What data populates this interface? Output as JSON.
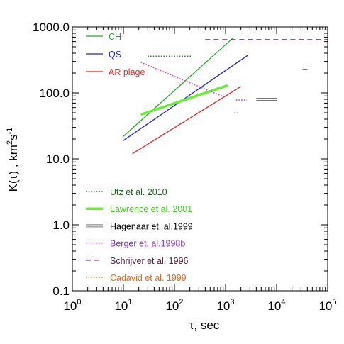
{
  "chart_data": {
    "type": "line",
    "x_scale": "log",
    "y_scale": "log",
    "xlim": [
      1,
      100000
    ],
    "ylim": [
      0.1,
      1000
    ],
    "xlabel": "τ, sec",
    "ylabel": "K(τ) , km²s⁻¹",
    "ylabel_parts": {
      "base": "K(τ) , km",
      "sup1": "2",
      "mid": "s",
      "sup2": "-1"
    },
    "xlabel_parts": {
      "tau": "τ",
      "rest": ", sec"
    },
    "x_ticks": [
      {
        "value": 1,
        "base": "10",
        "exp": "0"
      },
      {
        "value": 10,
        "base": "10",
        "exp": "1"
      },
      {
        "value": 100,
        "base": "10",
        "exp": "2"
      },
      {
        "value": 1000,
        "base": "10",
        "exp": "3"
      },
      {
        "value": 10000,
        "base": "10",
        "exp": "4"
      },
      {
        "value": 100000,
        "base": "10",
        "exp": "5"
      }
    ],
    "y_ticks": [
      {
        "value": 0.1,
        "label": "0.1"
      },
      {
        "value": 1,
        "label": "1.0"
      },
      {
        "value": 10,
        "label": "10.0"
      },
      {
        "value": 100,
        "label": "100.0"
      },
      {
        "value": 1000,
        "label": "1000.0"
      }
    ],
    "legend_top": [
      {
        "name": "CH",
        "color": "#22aa22",
        "style": "solid"
      },
      {
        "name": "QS",
        "color": "#2222dd",
        "style": "solid"
      },
      {
        "name": "AR plage",
        "color": "#ee2222",
        "style": "solid"
      }
    ],
    "legend_bottom": [
      {
        "name": "Utz et al. 2010",
        "color": "#228822",
        "style": "dotted",
        "text_color": "#1a661a"
      },
      {
        "name": "Lawrence et al. 2001",
        "color": "#66ee33",
        "style": "thick",
        "text_color": "#44cc22"
      },
      {
        "name": "Hagenaar et. al.1999",
        "color": "#777777",
        "style": "double",
        "text_color": "#000000"
      },
      {
        "name": "Berger et. al.1998b",
        "color": "#cc33ee",
        "style": "dotted",
        "text_color": "#8833cc"
      },
      {
        "name": "Schrijver et al. 1996",
        "color": "#662255",
        "style": "dashed",
        "text_color": "#552244"
      },
      {
        "name": "Cadavid et al. 1999",
        "color": "#ee7722",
        "style": "dotted",
        "text_color": "#ee6611"
      }
    ],
    "series": [
      {
        "name": "CH",
        "color": "#22aa22",
        "style": "solid",
        "x": [
          10,
          1400
        ],
        "y": [
          22,
          680
        ]
      },
      {
        "name": "QS",
        "color": "#2222dd",
        "style": "solid",
        "x": [
          10,
          2700
        ],
        "y": [
          19,
          370
        ]
      },
      {
        "name": "AR plage",
        "color": "#ee2222",
        "style": "solid",
        "x": [
          15,
          2000
        ],
        "y": [
          12,
          125
        ]
      },
      {
        "name": "Utz et al. 2010",
        "color": "#228822",
        "style": "dotted",
        "x": [
          30,
          210
        ],
        "y": [
          360,
          360
        ]
      },
      {
        "name": "Lawrence et al. 2001",
        "color": "#66ee33",
        "style": "thick",
        "x": [
          22,
          1100
        ],
        "y": [
          47,
          130
        ]
      },
      {
        "name": "Hagenaar et. al.1999",
        "color": "#777777",
        "style": "double",
        "segments": [
          {
            "x": [
              4000,
              10000
            ],
            "y": [
              80,
              80
            ]
          },
          {
            "x": [
              32000,
              40000
            ],
            "y": [
              238,
              238
            ]
          }
        ]
      },
      {
        "name": "Berger et. al.1998b",
        "color": "#cc33ee",
        "style": "dotted",
        "segments": [
          {
            "x": [
              22,
              1000
            ],
            "y": [
              290,
              85
            ]
          },
          {
            "x": [
              1600,
              2600
            ],
            "y": [
              78,
              78
            ]
          },
          {
            "x": [
              1500,
              1900
            ],
            "y": [
              50,
              50
            ]
          }
        ]
      },
      {
        "name": "Schrijver et al. 1996",
        "color": "#662255",
        "style": "dashed",
        "x": [
          400,
          100000
        ],
        "y": [
          640,
          640
        ]
      }
    ]
  }
}
